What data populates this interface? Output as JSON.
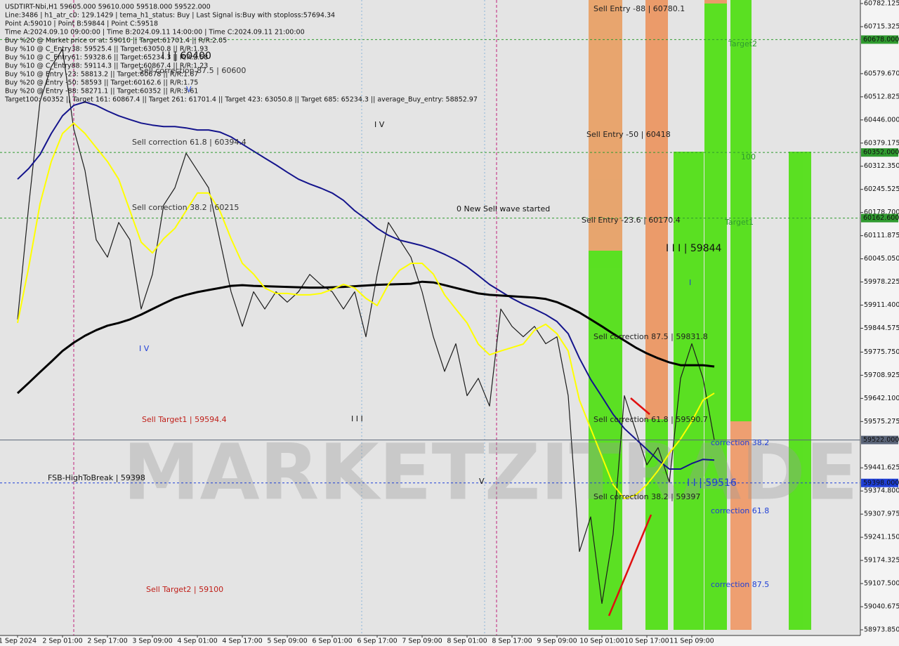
{
  "chart_data": {
    "type": "line",
    "info_lines": [
      "USDTIRT-Nbi,H1  59605.000 59610.000 59518.000 59522.000",
      "Line:3486 | h1_atr_c0: 129.1429 | tema_h1_status: Buy | Last Signal is:Buy with stoploss:57694.34",
      "Point A:59010 | Point B:59844 | Point C:59518",
      "Time A:2024.09.10 09:00:00 | Time B:2024.09.11 14:00:00 | Time C:2024.09.11 21:00:00",
      "Buy %20 @ Market price or at: 59010 || Target:61701.4 || R/R:2.05",
      "Buy %10 @ C_Entry38: 59525.4 || Target:63050.8 || R/R:1.93",
      "Buy %10 @ C_Entry61: 59328.6 || Target:65234.3 || R/R:2.58",
      "Buy %10 @ C_Entry88: 59114.3 || Target:60867.4 || R/R:1.23",
      "Buy %10 @ Entry -23: 58813.2 || Target:60678 || R/R:1.67",
      "Buy %20 @ Entry -50: 58593 || Target:60162.6 || R/R:1.75",
      "Buy %20 @ Entry -88: 58271.1 || Target:60352 || R/R:3.61",
      "Target100: 60352 || Target 161: 60867.4 || Target 261: 61701.4 || Target 423: 63050.8 || Target 685: 65234.3 || average_Buy_entry: 58852.97"
    ],
    "categories": [
      "1 Sep 2024",
      null,
      null,
      null,
      "2 Sep 01:00",
      null,
      null,
      null,
      "2 Sep 17:00",
      null,
      null,
      null,
      "3 Sep 09:00",
      null,
      null,
      null,
      "4 Sep 01:00",
      null,
      null,
      null,
      "4 Sep 17:00",
      null,
      null,
      null,
      "5 Sep 09:00",
      null,
      null,
      null,
      "6 Sep 01:00",
      null,
      null,
      null,
      "6 Sep 17:00",
      null,
      null,
      null,
      "7 Sep 09:00",
      null,
      null,
      null,
      "8 Sep 01:00",
      null,
      null,
      null,
      "8 Sep 17:00",
      null,
      null,
      null,
      "9 Sep 09:00",
      null,
      null,
      null,
      "10 Sep 01:00",
      null,
      null,
      null,
      "10 Sep 17:00",
      null,
      null,
      null,
      "11 Sep 09:00",
      null,
      null
    ],
    "series": [
      {
        "color": "#1c1c1c",
        "width": 1.2,
        "values": [
          59870,
          60200,
          60500,
          60600,
          60650,
          60420,
          60300,
          60100,
          60050,
          60150,
          60100,
          59900,
          60000,
          60200,
          60250,
          60350,
          60300,
          60250,
          60100,
          59950,
          59850,
          59950,
          59900,
          59950,
          59920,
          59950,
          60000,
          59970,
          59950,
          59900,
          59950,
          59820,
          60000,
          60150,
          60100,
          60050,
          59950,
          59820,
          59720,
          59800,
          59650,
          59700,
          59620,
          59900,
          59850,
          59820,
          59850,
          59800,
          59820,
          59650,
          59200,
          59300,
          59050,
          59250,
          59650,
          59550,
          59450,
          59500,
          59400,
          59700,
          59800,
          59700,
          59522
        ]
      },
      {
        "color": "#14148c",
        "width": 2,
        "values": [
          60275,
          60306,
          60346,
          60407,
          60458,
          60488,
          60498,
          60488,
          60472,
          60458,
          60447,
          60437,
          60431,
          60427,
          60427,
          60423,
          60417,
          60417,
          60411,
          60397,
          60376,
          60356,
          60336,
          60316,
          60295,
          60275,
          60261,
          60249,
          60235,
          60214,
          60184,
          60160,
          60133,
          60113,
          60099,
          60091,
          60083,
          60072,
          60058,
          60042,
          60022,
          59997,
          59971,
          59951,
          59931,
          59914,
          59900,
          59884,
          59864,
          59829,
          59758,
          59697,
          59647,
          59596,
          59555,
          59525,
          59495,
          59464,
          59438,
          59438,
          59454,
          59466,
          59464
        ]
      },
      {
        "color": "#000000",
        "width": 3,
        "values": [
          59657,
          59687,
          59718,
          59748,
          59779,
          59803,
          59823,
          59839,
          59852,
          59860,
          59870,
          59884,
          59900,
          59916,
          59931,
          59941,
          59949,
          59955,
          59961,
          59967,
          59969,
          59967,
          59966,
          59965,
          59964,
          59963,
          59962,
          59962,
          59963,
          59964,
          59966,
          59968,
          59970,
          59971,
          59972,
          59973,
          59979,
          59977,
          59969,
          59961,
          59953,
          59945,
          59941,
          59939,
          59937,
          59935,
          59933,
          59929,
          59920,
          59906,
          59890,
          59870,
          59850,
          59829,
          59809,
          59789,
          59772,
          59758,
          59746,
          59738,
          59738,
          59738,
          59734
        ]
      },
      {
        "color": "#ffff00",
        "width": 2,
        "values": [
          59860,
          60022,
          60204,
          60326,
          60407,
          60437,
          60407,
          60366,
          60326,
          60275,
          60184,
          60093,
          60062,
          60103,
          60133,
          60184,
          60235,
          60235,
          60184,
          60103,
          60032,
          60001,
          59961,
          59945,
          59945,
          59941,
          59941,
          59945,
          59957,
          59971,
          59961,
          59931,
          59910,
          59971,
          60012,
          60032,
          60032,
          60001,
          59941,
          59900,
          59860,
          59799,
          59768,
          59779,
          59789,
          59799,
          59839,
          59856,
          59829,
          59779,
          59637,
          59555,
          59474,
          59393,
          59353,
          59363,
          59393,
          59434,
          59484,
          59525,
          59576,
          59637,
          59657
        ]
      }
    ],
    "ylim": [
      58957.6,
      60792.3
    ],
    "yticks": [
      60782.125,
      60715.325,
      {
        "value": 60579.67,
        "label": "60579.670"
      },
      60512.825,
      {
        "value": 60446,
        "label": "60446.000"
      },
      60379.175,
      {
        "value": 60312.35,
        "label": "60312.350"
      },
      60245.525,
      {
        "value": 60178.7,
        "label": "60178.700"
      },
      60111.875,
      {
        "value": 60045.05,
        "label": "60045.050"
      },
      59978.225,
      {
        "value": 59911.4,
        "label": "59911.400"
      },
      59844.575,
      {
        "value": 59775.75,
        "label": "59775.750"
      },
      59708.925,
      {
        "value": 59642.1,
        "label": "59642.100"
      },
      59575.275,
      59441.625,
      {
        "value": 59374.8,
        "label": "59374.800"
      },
      59307.975,
      {
        "value": 59241.15,
        "label": "59241.150"
      },
      59174.325,
      {
        "value": 59107.5,
        "label": "59107.500"
      },
      59040.675,
      {
        "value": 58973.85,
        "label": "58973.850"
      }
    ],
    "levels": [
      {
        "value": 60678,
        "label": "60678.000",
        "color": "#2f9a2f",
        "dash": true
      },
      {
        "value": 60352,
        "label": "60352.000",
        "color": "#2f9a2f",
        "dash": true
      },
      {
        "value": 60162.6,
        "label": "60162.600",
        "color": "#2f9a2f",
        "dash": true
      },
      {
        "value": 59522,
        "label": "59522.000",
        "color": "#5a6478",
        "dash": false
      },
      {
        "value": 59398,
        "label": "59398.000",
        "color": "#1f3fd6",
        "dash": true
      }
    ],
    "annotations": [
      {
        "text": "Sell Entry -88 | 60780.1",
        "color": "#222"
      },
      {
        "text": "Sell Entry -50 | 60418",
        "color": "#222"
      },
      {
        "text": "Sell Entry -23.6 | 60170.4",
        "color": "#222"
      },
      {
        "text": "Target2",
        "color": "#2f9a2f"
      },
      {
        "text": "100",
        "color": "#2f9a2f"
      },
      {
        "text": "Target1",
        "color": "#2f9a2f"
      },
      {
        "text": "0 New Sell wave started",
        "color": "#111"
      },
      {
        "text": "I I I | 59844",
        "color": "#111"
      },
      {
        "text": "I",
        "color": "#1f3fd6"
      },
      {
        "text": "Sell correction 87.5 | 59831.8",
        "color": "#222"
      },
      {
        "text": "Sell correction 61.8 | 59590.7",
        "color": "#222"
      },
      {
        "text": "Sell correction 38.2 | 59397",
        "color": "#222"
      },
      {
        "text": "correction 38.2",
        "color": "#1f3fd6"
      },
      {
        "text": "correction 61.8",
        "color": "#1f3fd6"
      },
      {
        "text": "correction 87.5",
        "color": "#1f3fd6"
      },
      {
        "text": "FSB-HighToBreak | 59398",
        "color": "#111"
      },
      {
        "text": "Sell correction 61.8 | 60394.4",
        "color": "#333"
      },
      {
        "text": "Sell correction 38.2 | 60215",
        "color": "#333"
      },
      {
        "text": "Sell correction 87.5 | 60600",
        "color": "#333"
      },
      {
        "text": "I I | 60400",
        "color": "#111"
      },
      {
        "text": "Sell Target1 | 59594.4",
        "color": "#c0201a"
      },
      {
        "text": "Sell Target2 | 59100",
        "color": "#c0201a"
      },
      {
        "text": "I V",
        "color": "#111"
      },
      {
        "text": "I V",
        "color": "#1f3fd6"
      },
      {
        "text": "I I I",
        "color": "#111"
      },
      {
        "text": "V",
        "color": "#111"
      },
      {
        "text": "V",
        "color": "#1f3fd6"
      },
      {
        "text": "I I | 59516",
        "color": "#1f3fd6"
      }
    ],
    "watermark": "MARKETZITRADE"
  }
}
